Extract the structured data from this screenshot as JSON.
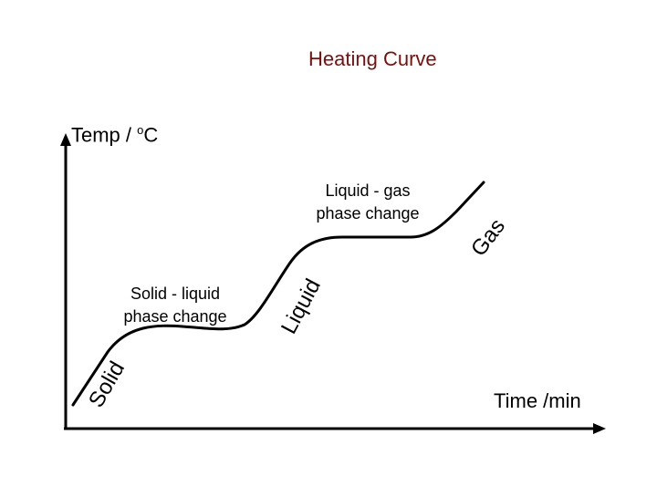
{
  "diagram": {
    "title": "Heating Curve",
    "y_axis_label_main": "Temp / ",
    "y_axis_label_sup": "o",
    "y_axis_label_unit": "C",
    "x_axis_label": "Time /min",
    "annotations": {
      "solid_liquid_line1": "Solid - liquid",
      "solid_liquid_line2": "phase change",
      "liquid_gas_line1": "Liquid - gas",
      "liquid_gas_line2": "phase change"
    },
    "segments": {
      "solid": "Solid",
      "liquid": "Liquid",
      "gas": "Gas"
    },
    "colors": {
      "title": "#7a0f0f",
      "axes": "#000000",
      "curve": "#000000"
    }
  }
}
